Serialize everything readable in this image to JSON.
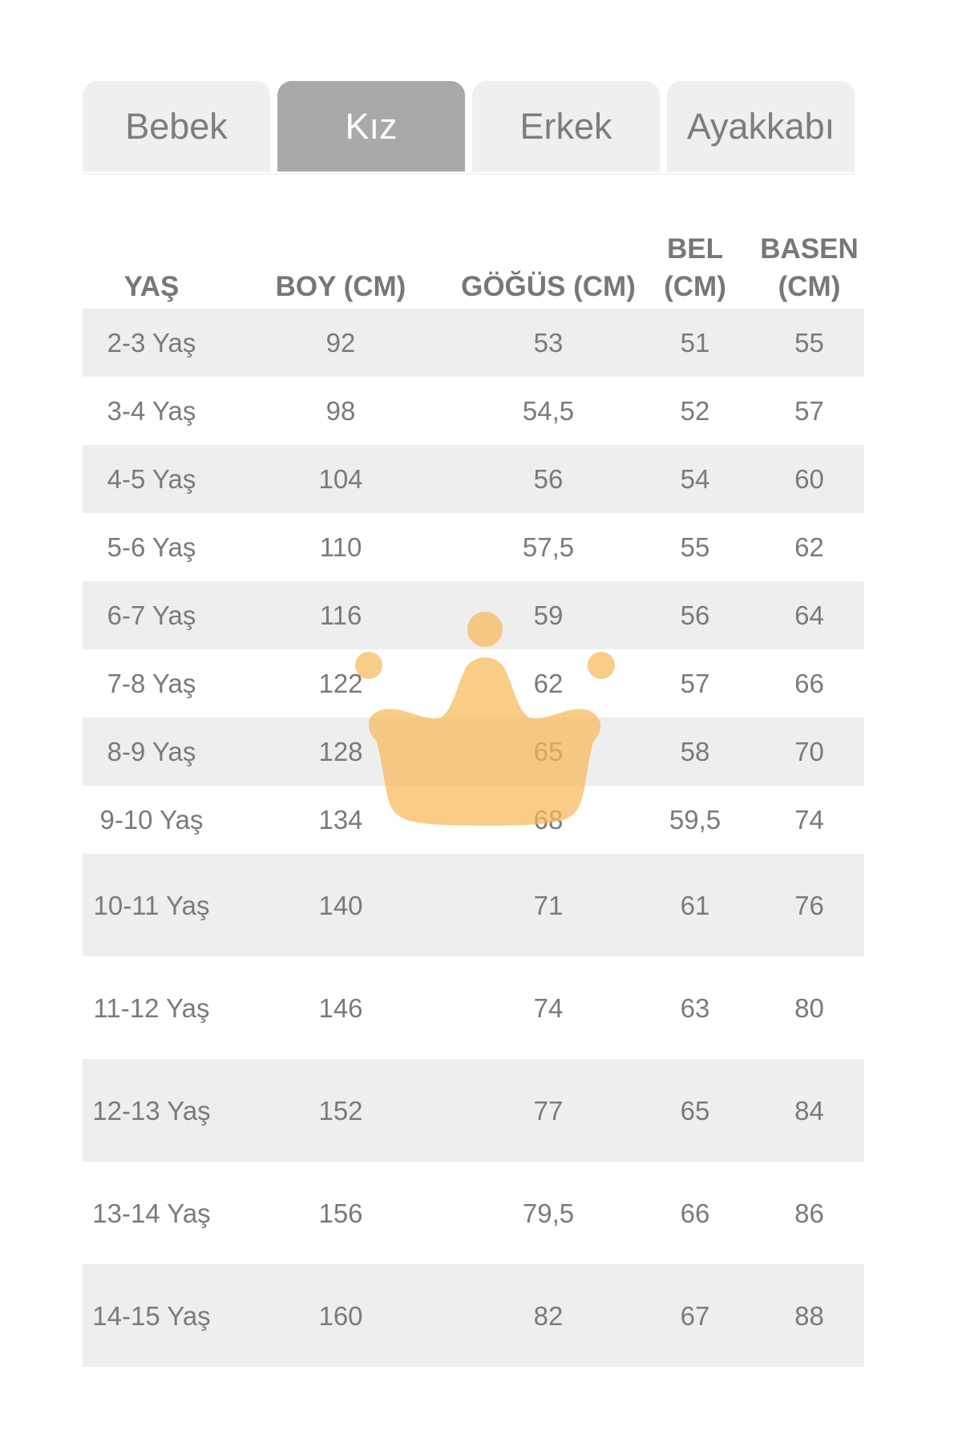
{
  "tabs": [
    {
      "label": "Bebek",
      "active": false
    },
    {
      "label": "Kız",
      "active": true
    },
    {
      "label": "Erkek",
      "active": false
    },
    {
      "label": "Ayakkabı",
      "active": false
    }
  ],
  "table": {
    "headers": {
      "age": "YAŞ",
      "height": "BOY (CM)",
      "chest": "GÖĞÜS (CM)",
      "waist": "BEL (CM)",
      "hip": "BASEN (CM)"
    },
    "rows": [
      {
        "age": "2-3 Yaş",
        "height": "92",
        "chest": "53",
        "waist": "51",
        "hip": "55"
      },
      {
        "age": "3-4 Yaş",
        "height": "98",
        "chest": "54,5",
        "waist": "52",
        "hip": "57"
      },
      {
        "age": "4-5 Yaş",
        "height": "104",
        "chest": "56",
        "waist": "54",
        "hip": "60"
      },
      {
        "age": "5-6 Yaş",
        "height": "110",
        "chest": "57,5",
        "waist": "55",
        "hip": "62"
      },
      {
        "age": "6-7 Yaş",
        "height": "116",
        "chest": "59",
        "waist": "56",
        "hip": "64"
      },
      {
        "age": "7-8 Yaş",
        "height": "122",
        "chest": "62",
        "waist": "57",
        "hip": "66"
      },
      {
        "age": "8-9 Yaş",
        "height": "128",
        "chest": "65",
        "waist": "58",
        "hip": "70"
      },
      {
        "age": "9-10 Yaş",
        "height": "134",
        "chest": "68",
        "waist": "59,5",
        "hip": "74"
      },
      {
        "age": "10-11 Yaş",
        "height": "140",
        "chest": "71",
        "waist": "61",
        "hip": "76"
      },
      {
        "age": "11-12 Yaş",
        "height": "146",
        "chest": "74",
        "waist": "63",
        "hip": "80"
      },
      {
        "age": "12-13 Yaş",
        "height": "152",
        "chest": "77",
        "waist": "65",
        "hip": "84"
      },
      {
        "age": "13-14 Yaş",
        "height": "156",
        "chest": "79,5",
        "waist": "66",
        "hip": "86"
      },
      {
        "age": "14-15 Yaş",
        "height": "160",
        "chest": "82",
        "waist": "67",
        "hip": "88"
      }
    ]
  },
  "watermark": {
    "icon": "crown-icon",
    "color": "#f7b95a"
  },
  "colors": {
    "tab_bg": "#efefef",
    "tab_active_bg": "#a9a9a9",
    "stripe": "#eeeeee",
    "text": "#7a7a7a"
  }
}
